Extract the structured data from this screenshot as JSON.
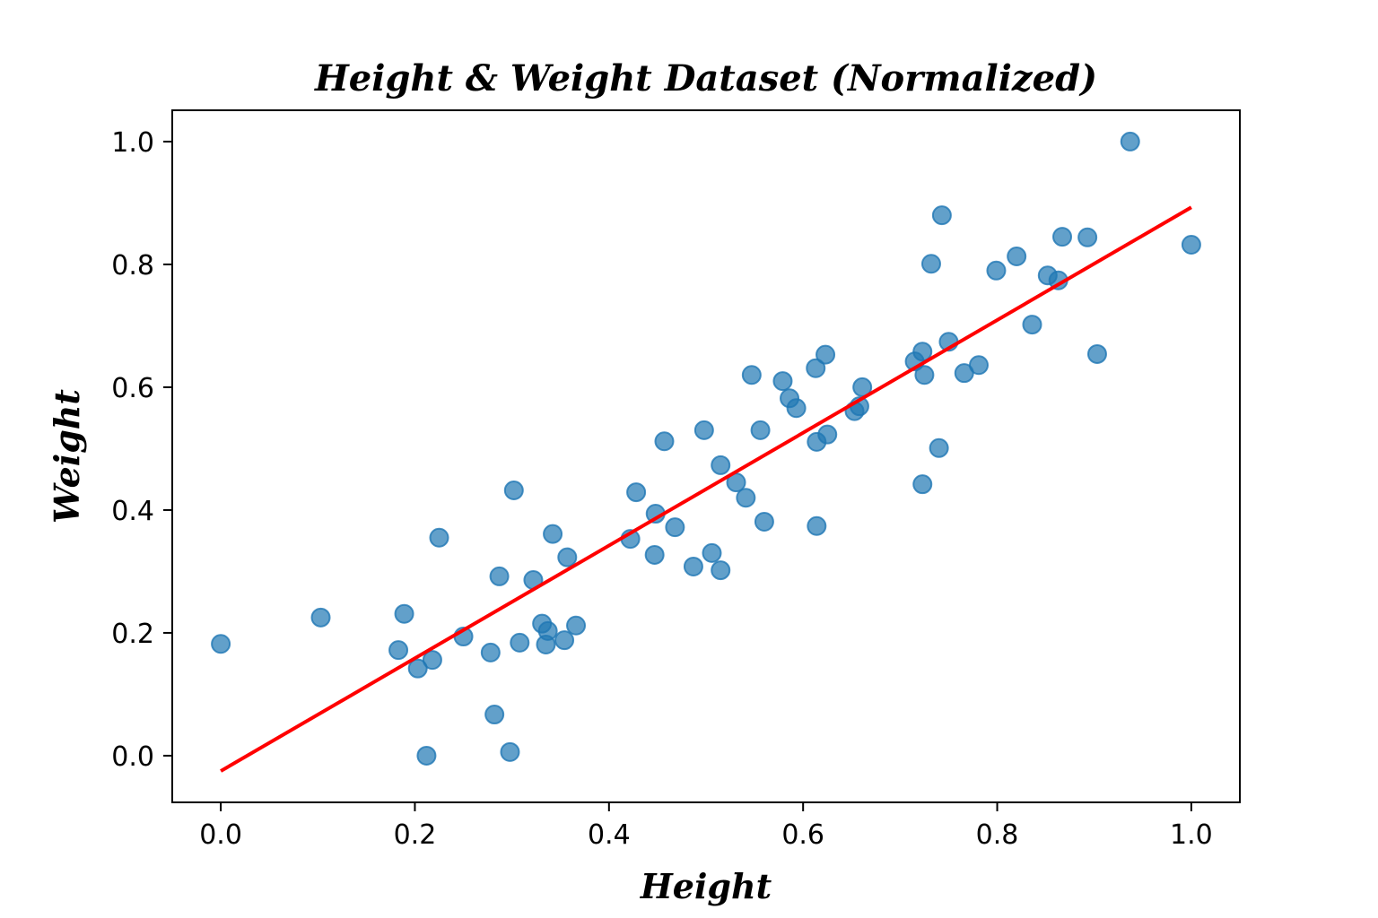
{
  "chart_data": {
    "type": "scatter",
    "title": "Height & Weight Dataset (Normalized)",
    "xlabel": "Height",
    "ylabel": "Weight",
    "xlim": [
      -0.05,
      1.05
    ],
    "ylim": [
      -0.076,
      1.051
    ],
    "xticks": [
      "0.0",
      "0.2",
      "0.4",
      "0.6",
      "0.8",
      "1.0"
    ],
    "yticks": [
      "0.0",
      "0.2",
      "0.4",
      "0.6",
      "0.8",
      "1.0"
    ],
    "grid": false,
    "colors": {
      "points": "#1f77b4",
      "fit_line": "#ff0000"
    },
    "points": [
      [
        0.0,
        0.182
      ],
      [
        0.103,
        0.225
      ],
      [
        0.183,
        0.172
      ],
      [
        0.189,
        0.231
      ],
      [
        0.203,
        0.142
      ],
      [
        0.212,
        0.0
      ],
      [
        0.218,
        0.156
      ],
      [
        0.225,
        0.355
      ],
      [
        0.25,
        0.194
      ],
      [
        0.278,
        0.168
      ],
      [
        0.282,
        0.067
      ],
      [
        0.287,
        0.292
      ],
      [
        0.298,
        0.006
      ],
      [
        0.302,
        0.432
      ],
      [
        0.308,
        0.184
      ],
      [
        0.322,
        0.286
      ],
      [
        0.331,
        0.215
      ],
      [
        0.335,
        0.181
      ],
      [
        0.337,
        0.203
      ],
      [
        0.342,
        0.361
      ],
      [
        0.354,
        0.188
      ],
      [
        0.357,
        0.323
      ],
      [
        0.366,
        0.212
      ],
      [
        0.422,
        0.353
      ],
      [
        0.428,
        0.429
      ],
      [
        0.447,
        0.327
      ],
      [
        0.448,
        0.394
      ],
      [
        0.457,
        0.512
      ],
      [
        0.468,
        0.372
      ],
      [
        0.487,
        0.308
      ],
      [
        0.498,
        0.53
      ],
      [
        0.506,
        0.33
      ],
      [
        0.515,
        0.473
      ],
      [
        0.515,
        0.302
      ],
      [
        0.531,
        0.445
      ],
      [
        0.541,
        0.42
      ],
      [
        0.547,
        0.62
      ],
      [
        0.556,
        0.53
      ],
      [
        0.56,
        0.381
      ],
      [
        0.579,
        0.61
      ],
      [
        0.586,
        0.582
      ],
      [
        0.593,
        0.566
      ],
      [
        0.613,
        0.631
      ],
      [
        0.614,
        0.511
      ],
      [
        0.614,
        0.374
      ],
      [
        0.623,
        0.653
      ],
      [
        0.625,
        0.523
      ],
      [
        0.653,
        0.561
      ],
      [
        0.658,
        0.569
      ],
      [
        0.661,
        0.6
      ],
      [
        0.715,
        0.642
      ],
      [
        0.723,
        0.658
      ],
      [
        0.723,
        0.442
      ],
      [
        0.725,
        0.62
      ],
      [
        0.732,
        0.801
      ],
      [
        0.74,
        0.501
      ],
      [
        0.743,
        0.88
      ],
      [
        0.75,
        0.674
      ],
      [
        0.766,
        0.623
      ],
      [
        0.781,
        0.636
      ],
      [
        0.799,
        0.79
      ],
      [
        0.82,
        0.813
      ],
      [
        0.836,
        0.702
      ],
      [
        0.852,
        0.782
      ],
      [
        0.863,
        0.774
      ],
      [
        0.867,
        0.845
      ],
      [
        0.893,
        0.844
      ],
      [
        0.903,
        0.654
      ],
      [
        0.937,
        1.0
      ],
      [
        1.0,
        0.832
      ]
    ],
    "fit_line": {
      "x": [
        0.0,
        1.0
      ],
      "y": [
        -0.025,
        0.893
      ]
    }
  }
}
